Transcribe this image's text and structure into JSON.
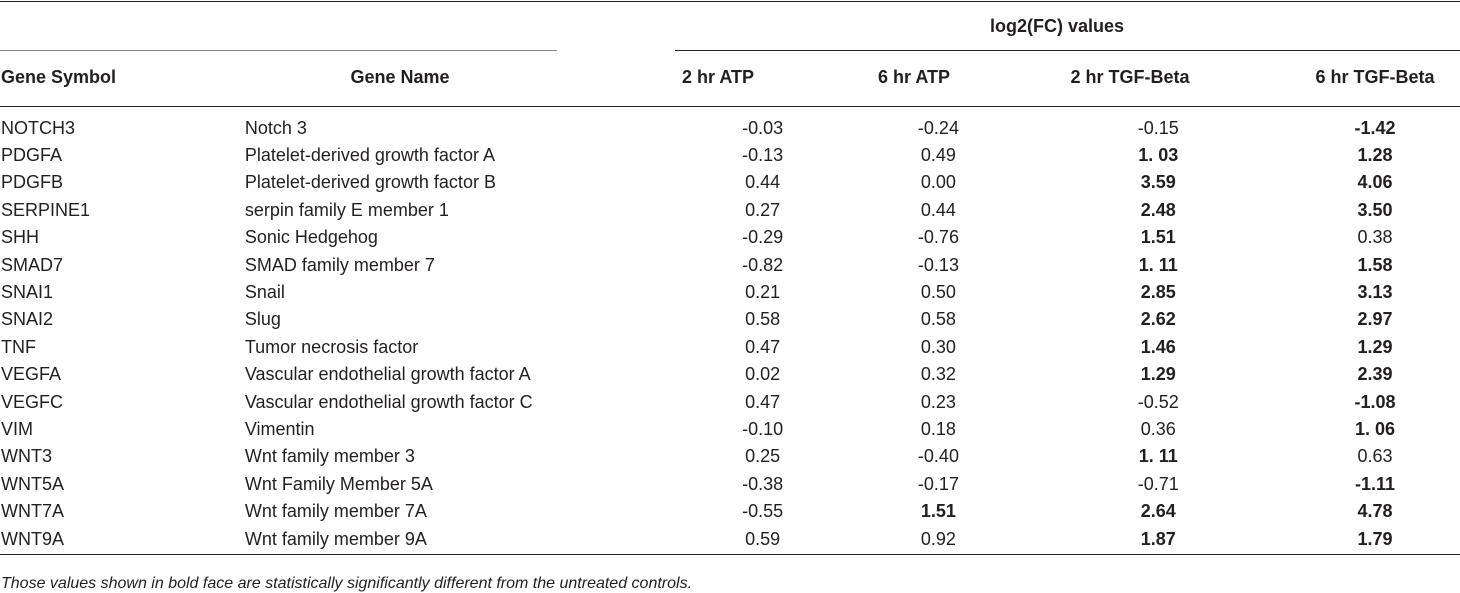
{
  "header": {
    "group_label": "log2(FC) values",
    "columns": [
      "Gene Symbol",
      "Gene Name",
      "2 hr ATP",
      "6 hr ATP",
      "2 hr TGF-Beta",
      "6 hr TGF-Beta"
    ]
  },
  "rows": [
    {
      "symbol": "NOTCH3",
      "name": "Notch 3",
      "v": [
        "-0.03",
        "-0.24",
        "-0.15",
        "-1.42"
      ],
      "bold": [
        false,
        false,
        false,
        true
      ]
    },
    {
      "symbol": "PDGFA",
      "name": "Platelet-derived growth factor A",
      "v": [
        "-0.13",
        "0.49",
        "1. 03",
        "1.28"
      ],
      "bold": [
        false,
        false,
        true,
        true
      ]
    },
    {
      "symbol": "PDGFB",
      "name": "Platelet-derived growth factor B",
      "v": [
        "0.44",
        "0.00",
        "3.59",
        "4.06"
      ],
      "bold": [
        false,
        false,
        true,
        true
      ]
    },
    {
      "symbol": "SERPINE1",
      "name": "serpin family E member 1",
      "v": [
        "0.27",
        "0.44",
        "2.48",
        "3.50"
      ],
      "bold": [
        false,
        false,
        true,
        true
      ]
    },
    {
      "symbol": "SHH",
      "name": "Sonic Hedgehog",
      "v": [
        "-0.29",
        "-0.76",
        "1.51",
        "0.38"
      ],
      "bold": [
        false,
        false,
        true,
        false
      ]
    },
    {
      "symbol": "SMAD7",
      "name": "SMAD family member 7",
      "v": [
        "-0.82",
        "-0.13",
        "1. 11",
        "1.58"
      ],
      "bold": [
        false,
        false,
        true,
        true
      ]
    },
    {
      "symbol": "SNAI1",
      "name": "Snail",
      "v": [
        "0.21",
        "0.50",
        "2.85",
        "3.13"
      ],
      "bold": [
        false,
        false,
        true,
        true
      ]
    },
    {
      "symbol": "SNAI2",
      "name": "Slug",
      "v": [
        "0.58",
        "0.58",
        "2.62",
        "2.97"
      ],
      "bold": [
        false,
        false,
        true,
        true
      ]
    },
    {
      "symbol": "TNF",
      "name": "Tumor necrosis factor",
      "v": [
        "0.47",
        "0.30",
        "1.46",
        "1.29"
      ],
      "bold": [
        false,
        false,
        true,
        true
      ]
    },
    {
      "symbol": "VEGFA",
      "name": "Vascular endothelial growth factor A",
      "v": [
        "0.02",
        "0.32",
        "1.29",
        "2.39"
      ],
      "bold": [
        false,
        false,
        true,
        true
      ]
    },
    {
      "symbol": "VEGFC",
      "name": "Vascular endothelial growth factor C",
      "v": [
        "0.47",
        "0.23",
        "-0.52",
        "-1.08"
      ],
      "bold": [
        false,
        false,
        false,
        true
      ]
    },
    {
      "symbol": "VIM",
      "name": "Vimentin",
      "v": [
        "-0.10",
        "0.18",
        "0.36",
        "1. 06"
      ],
      "bold": [
        false,
        false,
        false,
        true
      ]
    },
    {
      "symbol": "WNT3",
      "name": "Wnt family member 3",
      "v": [
        "0.25",
        "-0.40",
        "1. 11",
        "0.63"
      ],
      "bold": [
        false,
        false,
        true,
        false
      ]
    },
    {
      "symbol": "WNT5A",
      "name": "Wnt Family Member 5A",
      "v": [
        "-0.38",
        "-0.17",
        "-0.71",
        "-1.11"
      ],
      "bold": [
        false,
        false,
        false,
        true
      ]
    },
    {
      "symbol": "WNT7A",
      "name": "Wnt family member 7A",
      "v": [
        "-0.55",
        "1.51",
        "2.64",
        "4.78"
      ],
      "bold": [
        false,
        true,
        true,
        true
      ]
    },
    {
      "symbol": "WNT9A",
      "name": "Wnt family member 9A",
      "v": [
        "0.59",
        "0.92",
        "1.87",
        "1.79"
      ],
      "bold": [
        false,
        false,
        true,
        true
      ]
    }
  ],
  "footnote": "Those values shown in bold face are statistically significantly different from the untreated controls."
}
